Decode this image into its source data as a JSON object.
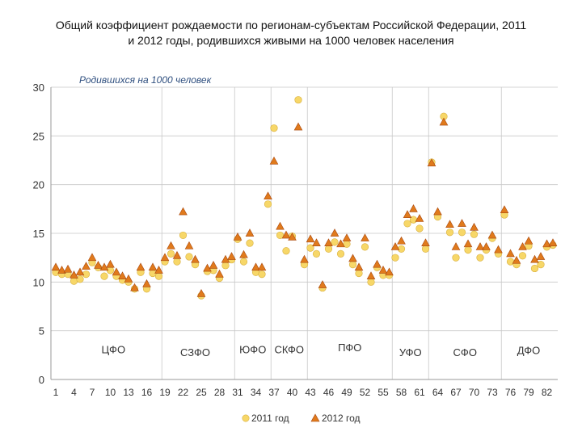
{
  "chart_data": {
    "type": "scatter",
    "title_lines": [
      "Общий коэффициент рождаемости по регионам-субъектам Российской Федерации, 2011",
      "и 2012 годы, родившихся живыми на 1000 человек населения"
    ],
    "unit_label": "Родившихся на 1000 человек",
    "xlim": [
      1,
      83
    ],
    "ylim": [
      0,
      30
    ],
    "y_ticks": [
      0,
      5,
      10,
      15,
      20,
      25,
      30
    ],
    "x_ticks": [
      1,
      4,
      7,
      10,
      13,
      16,
      19,
      22,
      25,
      28,
      31,
      34,
      37,
      40,
      43,
      46,
      49,
      52,
      55,
      58,
      61,
      64,
      67,
      70,
      73,
      76,
      79,
      82
    ],
    "group_separators": [
      18.5,
      30.5,
      36.5,
      42.5,
      56.5,
      62.5,
      74.5
    ],
    "groups": [
      {
        "label": "ЦФО",
        "x": 10.5,
        "y": 2.7
      },
      {
        "label": "СЗФО",
        "x": 24,
        "y": 2.4
      },
      {
        "label": "ЮФО",
        "x": 33.5,
        "y": 2.7
      },
      {
        "label": "СКФО",
        "x": 39.5,
        "y": 2.7
      },
      {
        "label": "ПФО",
        "x": 49.5,
        "y": 2.9
      },
      {
        "label": "УФО",
        "x": 59.5,
        "y": 2.4
      },
      {
        "label": "СФО",
        "x": 68.5,
        "y": 2.4
      },
      {
        "label": "ДФО",
        "x": 79,
        "y": 2.6
      }
    ],
    "legend_position": "bottom-center",
    "grid": {
      "horizontal": true,
      "vertical_separators": true
    },
    "colors": {
      "2011": "#f7d768",
      "2012": "#e07a1c",
      "2012_stroke": "#a8480f",
      "2011_stroke": "#d8b040"
    },
    "series": [
      {
        "name": "2011 год",
        "marker": "circle",
        "x": [
          1,
          2,
          3,
          4,
          5,
          6,
          7,
          8,
          9,
          10,
          11,
          12,
          13,
          14,
          15,
          16,
          17,
          18,
          19,
          20,
          21,
          22,
          23,
          24,
          25,
          26,
          27,
          28,
          29,
          30,
          31,
          32,
          33,
          34,
          35,
          36,
          37,
          38,
          39,
          40,
          41,
          42,
          43,
          44,
          45,
          46,
          47,
          48,
          49,
          50,
          51,
          52,
          53,
          54,
          55,
          56,
          57,
          58,
          59,
          60,
          61,
          62,
          63,
          64,
          65,
          66,
          67,
          68,
          69,
          70,
          71,
          72,
          73,
          74,
          75,
          76,
          77,
          78,
          79,
          80,
          81,
          82,
          83
        ],
        "values": [
          11.0,
          10.8,
          10.8,
          10.1,
          10.3,
          10.8,
          12.0,
          11.5,
          10.6,
          11.2,
          10.6,
          10.2,
          10.0,
          9.3,
          11.0,
          9.3,
          10.9,
          10.6,
          12.1,
          12.9,
          12.1,
          14.8,
          12.6,
          11.8,
          8.6,
          11.1,
          11.2,
          10.4,
          11.7,
          12.3,
          14.4,
          12.1,
          14.0,
          11.0,
          10.8,
          18.0,
          25.8,
          14.8,
          13.2,
          14.7,
          28.7,
          11.8,
          13.5,
          12.9,
          9.4,
          13.4,
          14.1,
          12.9,
          13.9,
          11.8,
          10.9,
          13.6,
          10.0,
          11.5,
          10.7,
          10.7,
          12.5,
          13.4,
          16.0,
          16.4,
          15.5,
          13.4,
          22.3,
          16.7,
          27.0,
          15.1,
          12.5,
          15.1,
          13.3,
          14.9,
          12.5,
          13.3,
          14.5,
          12.9,
          16.9,
          12.1,
          11.8,
          12.7,
          13.7,
          11.4,
          11.8,
          13.6,
          13.8
        ]
      },
      {
        "name": "2012 год",
        "marker": "triangle",
        "x": [
          1,
          2,
          3,
          4,
          5,
          6,
          7,
          8,
          9,
          10,
          11,
          12,
          13,
          14,
          15,
          16,
          17,
          18,
          19,
          20,
          21,
          22,
          23,
          24,
          25,
          26,
          27,
          28,
          29,
          30,
          31,
          32,
          33,
          34,
          35,
          36,
          37,
          38,
          39,
          40,
          41,
          42,
          43,
          44,
          45,
          46,
          47,
          48,
          49,
          50,
          51,
          52,
          53,
          54,
          55,
          56,
          57,
          58,
          59,
          60,
          61,
          62,
          63,
          64,
          65,
          66,
          67,
          68,
          69,
          70,
          71,
          72,
          73,
          74,
          75,
          76,
          77,
          78,
          79,
          80,
          81,
          82,
          83
        ],
        "values": [
          11.5,
          11.2,
          11.3,
          10.7,
          11.0,
          11.6,
          12.5,
          11.7,
          11.5,
          11.8,
          11.0,
          10.6,
          10.3,
          9.4,
          11.5,
          9.8,
          11.5,
          11.2,
          12.5,
          13.7,
          12.7,
          17.2,
          13.7,
          12.3,
          8.8,
          11.4,
          11.7,
          10.8,
          12.3,
          12.6,
          14.6,
          12.8,
          15.0,
          11.5,
          11.5,
          18.8,
          22.4,
          15.7,
          14.8,
          14.6,
          25.9,
          12.3,
          14.4,
          14.0,
          9.7,
          14.0,
          15.0,
          13.9,
          14.5,
          12.4,
          11.5,
          14.5,
          10.6,
          11.8,
          11.2,
          11.0,
          13.6,
          14.2,
          16.9,
          17.5,
          16.5,
          14.0,
          22.2,
          17.2,
          26.4,
          15.9,
          13.6,
          16.0,
          13.9,
          15.6,
          13.6,
          13.6,
          14.8,
          13.3,
          17.4,
          12.9,
          12.2,
          13.6,
          14.2,
          12.3,
          12.6,
          13.9,
          14.0
        ]
      }
    ]
  }
}
